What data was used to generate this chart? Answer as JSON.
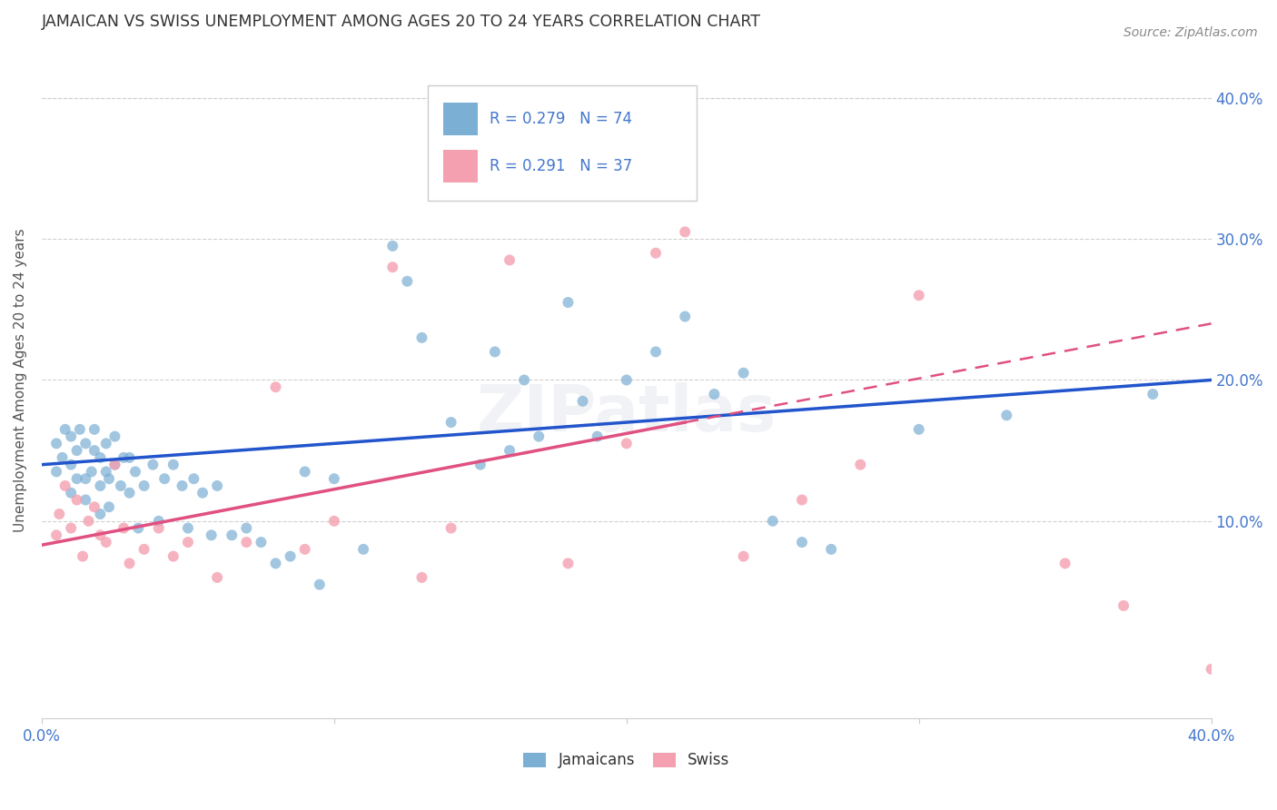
{
  "title": "JAMAICAN VS SWISS UNEMPLOYMENT AMONG AGES 20 TO 24 YEARS CORRELATION CHART",
  "source": "Source: ZipAtlas.com",
  "ylabel": "Unemployment Among Ages 20 to 24 years",
  "xlim": [
    0.0,
    0.4
  ],
  "ylim": [
    -0.04,
    0.44
  ],
  "background_color": "#ffffff",
  "grid_color": "#d0d0d0",
  "jamaican_color": "#7bafd4",
  "swiss_color": "#f4a0b0",
  "jamaican_line_color": "#2255cc",
  "swiss_line_color": "#e05080",
  "title_color": "#333333",
  "axis_label_color": "#555555",
  "tick_color": "#4477cc",
  "jamaicans_x": [
    0.005,
    0.005,
    0.007,
    0.008,
    0.01,
    0.01,
    0.01,
    0.012,
    0.012,
    0.013,
    0.015,
    0.015,
    0.015,
    0.017,
    0.018,
    0.018,
    0.02,
    0.02,
    0.02,
    0.022,
    0.022,
    0.023,
    0.023,
    0.025,
    0.025,
    0.027,
    0.028,
    0.03,
    0.03,
    0.032,
    0.033,
    0.035,
    0.038,
    0.04,
    0.042,
    0.045,
    0.048,
    0.05,
    0.052,
    0.055,
    0.058,
    0.06,
    0.065,
    0.07,
    0.075,
    0.08,
    0.085,
    0.09,
    0.095,
    0.1,
    0.11,
    0.12,
    0.125,
    0.13,
    0.14,
    0.15,
    0.155,
    0.16,
    0.165,
    0.17,
    0.18,
    0.185,
    0.19,
    0.2,
    0.21,
    0.22,
    0.23,
    0.24,
    0.25,
    0.26,
    0.27,
    0.3,
    0.33,
    0.38
  ],
  "jamaicans_y": [
    0.135,
    0.155,
    0.145,
    0.165,
    0.12,
    0.14,
    0.16,
    0.13,
    0.15,
    0.165,
    0.115,
    0.13,
    0.155,
    0.135,
    0.15,
    0.165,
    0.105,
    0.125,
    0.145,
    0.135,
    0.155,
    0.11,
    0.13,
    0.14,
    0.16,
    0.125,
    0.145,
    0.12,
    0.145,
    0.135,
    0.095,
    0.125,
    0.14,
    0.1,
    0.13,
    0.14,
    0.125,
    0.095,
    0.13,
    0.12,
    0.09,
    0.125,
    0.09,
    0.095,
    0.085,
    0.07,
    0.075,
    0.135,
    0.055,
    0.13,
    0.08,
    0.295,
    0.27,
    0.23,
    0.17,
    0.14,
    0.22,
    0.15,
    0.2,
    0.16,
    0.255,
    0.185,
    0.16,
    0.2,
    0.22,
    0.245,
    0.19,
    0.205,
    0.1,
    0.085,
    0.08,
    0.165,
    0.175,
    0.19
  ],
  "swiss_x": [
    0.005,
    0.006,
    0.008,
    0.01,
    0.012,
    0.014,
    0.016,
    0.018,
    0.02,
    0.022,
    0.025,
    0.028,
    0.03,
    0.035,
    0.04,
    0.045,
    0.05,
    0.06,
    0.07,
    0.08,
    0.09,
    0.1,
    0.12,
    0.13,
    0.14,
    0.16,
    0.18,
    0.2,
    0.21,
    0.22,
    0.24,
    0.26,
    0.28,
    0.3,
    0.35,
    0.37,
    0.4
  ],
  "swiss_y": [
    0.09,
    0.105,
    0.125,
    0.095,
    0.115,
    0.075,
    0.1,
    0.11,
    0.09,
    0.085,
    0.14,
    0.095,
    0.07,
    0.08,
    0.095,
    0.075,
    0.085,
    0.06,
    0.085,
    0.195,
    0.08,
    0.1,
    0.28,
    0.06,
    0.095,
    0.285,
    0.07,
    0.155,
    0.29,
    0.305,
    0.075,
    0.115,
    0.14,
    0.26,
    0.07,
    0.04,
    -0.005
  ],
  "jamaican_line": [
    0.0,
    0.4,
    0.14,
    0.2
  ],
  "swiss_line_solid": [
    0.0,
    0.22,
    0.083,
    0.17
  ],
  "swiss_line_dashed": [
    0.22,
    0.4,
    0.17,
    0.24
  ],
  "marker_size": 75
}
